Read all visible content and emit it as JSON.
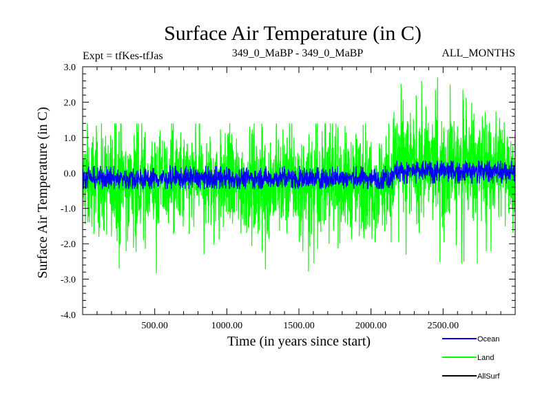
{
  "chart_data": {
    "type": "line",
    "title": "Surface Air Temperature (in C)",
    "subtitle_left": "Expt = tfKes-tfJas",
    "subtitle_center": "349_0_MaBP - 349_0_MaBP",
    "subtitle_right": "ALL_MONTHS",
    "xlabel": "Time (in years since start)",
    "ylabel": "Surface Air Temperature (in C)",
    "xlim": [
      0,
      3000
    ],
    "ylim": [
      -4.0,
      3.0
    ],
    "x_ticks": [
      500,
      1000,
      1500,
      2000,
      2500
    ],
    "x_tick_labels": [
      "500.00",
      "1000.00",
      "1500.00",
      "2000.00",
      "2500.00"
    ],
    "y_ticks": [
      3.0,
      2.0,
      1.0,
      0.0,
      -1.0,
      -2.0,
      -3.0,
      -4.0
    ],
    "y_tick_labels": [
      "3.0",
      "2.0",
      "1.0",
      "0.0",
      "-1.0",
      "-2.0",
      "-3.0",
      "-4.0"
    ],
    "legend_position": "bottom-right",
    "series": [
      {
        "name": "Land",
        "color": "#00ff00",
        "segments": [
          {
            "x0": 0,
            "x1": 2150,
            "mean": -0.3,
            "amp": 1.3,
            "max": 1.4,
            "min": -3.2
          },
          {
            "x0": 2150,
            "x1": 3000,
            "mean": 0.2,
            "amp": 1.4,
            "max": 2.8,
            "min": -2.6
          }
        ]
      },
      {
        "name": "Ocean",
        "color": "#0000ff",
        "segments": [
          {
            "x0": 0,
            "x1": 2150,
            "mean": -0.15,
            "amp": 0.28,
            "max": 0.2,
            "min": -0.45
          },
          {
            "x0": 2150,
            "x1": 3000,
            "mean": 0.05,
            "amp": 0.28,
            "max": 0.35,
            "min": -0.3
          }
        ]
      },
      {
        "name": "AllSurf",
        "color": "#000000",
        "segments": []
      }
    ]
  }
}
